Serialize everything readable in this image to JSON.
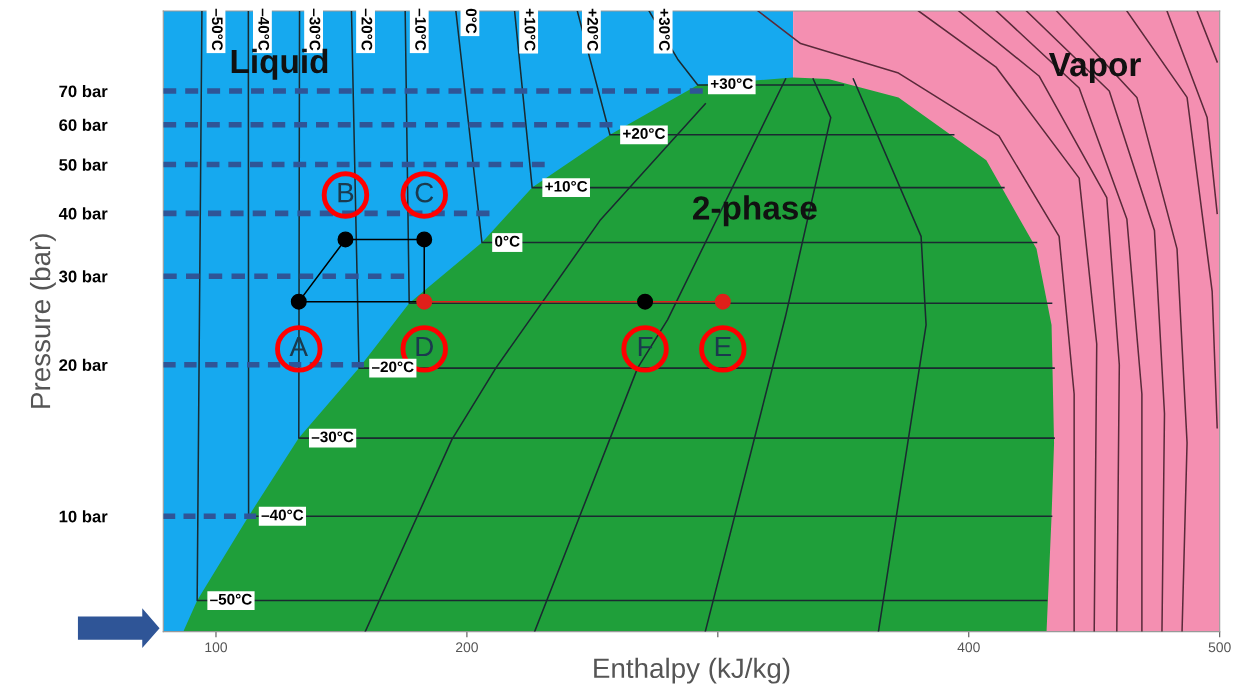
{
  "chart_data": {
    "type": "line",
    "xlabel": "Enthalpy (kJ/kg)",
    "ylabel": "Pressure (bar)",
    "log": "y",
    "xlim": [
      79,
      500
    ],
    "ylim": [
      5.9,
      101
    ],
    "xticks": [
      100,
      200,
      {
        "value": 300,
        "label": null
      },
      400,
      500
    ],
    "yticks": [
      {
        "value": 10,
        "label": "10 bar"
      },
      {
        "value": 20,
        "label": "20 bar"
      },
      {
        "value": 30,
        "label": "30 bar"
      },
      {
        "value": 40,
        "label": "40 bar"
      },
      {
        "value": 50,
        "label": "50 bar"
      },
      {
        "value": 60,
        "label": "60 bar"
      },
      {
        "value": 70,
        "label": "70 bar"
      }
    ],
    "grid": false,
    "bands": [
      {
        "axis": "x",
        "from": 79,
        "to": 330,
        "color": "#16a9ef"
      },
      {
        "axis": "x",
        "from": 330,
        "to": 500,
        "color": "#f48fb1"
      }
    ],
    "series": [
      {
        "type": "area",
        "color": "#1f9f3a",
        "x": [
          87,
          92.5,
          113,
          133,
          157,
          177,
          206,
          226,
          257,
          292,
          330,
          344,
          372,
          407,
          427,
          433,
          434,
          433,
          431
        ],
        "values": [
          5.9,
          6.8,
          10,
          14.3,
          19.7,
          26.5,
          35,
          45,
          57.3,
          72,
          74.5,
          74,
          68,
          51,
          34,
          24,
          14,
          10,
          5.9
        ]
      },
      {
        "color": "#1a2a30",
        "x": [
          159.5,
          194,
          211.5,
          253,
          295
        ],
        "values": [
          5.9,
          14.2,
          19.7,
          38.7,
          66
        ]
      },
      {
        "color": "#1a2a30",
        "x": [
          227,
          268,
          280,
          327
        ],
        "values": [
          5.9,
          19.7,
          24.6,
          74
        ]
      },
      {
        "color": "#1a2a30",
        "x": [
          295,
          327,
          345,
          338
        ],
        "values": [
          5.9,
          25,
          62,
          74
        ]
      },
      {
        "color": "#1a2a30",
        "x": [
          364,
          383,
          381,
          354
        ],
        "values": [
          5.9,
          24,
          36,
          74
        ]
      },
      {
        "color": "#5a2a3a",
        "x": [
          316,
          333,
          372,
          412,
          436,
          442,
          442
        ],
        "values": [
          101,
          87,
          76,
          57,
          36,
          17.5,
          5.9
        ]
      },
      {
        "color": "#5a2a3a",
        "x": [
          380,
          411,
          444,
          451,
          450
        ],
        "values": [
          101,
          78,
          47,
          22,
          5.9
        ]
      },
      {
        "color": "#5a2a3a",
        "x": [
          396,
          428,
          455,
          460,
          459
        ],
        "values": [
          101,
          75,
          43,
          20,
          5.9
        ]
      },
      {
        "color": "#5a2a3a",
        "x": [
          411,
          444,
          463,
          469,
          469
        ],
        "values": [
          101,
          71,
          39,
          17.5,
          5.9
        ]
      },
      {
        "color": "#5a2a3a",
        "x": [
          423,
          456,
          474,
          478,
          477
        ],
        "values": [
          101,
          70,
          37,
          16,
          5.9
        ]
      },
      {
        "color": "#5a2a3a",
        "x": [
          435,
          467,
          483,
          487,
          485
        ],
        "values": [
          101,
          68,
          34,
          14,
          5.9
        ]
      },
      {
        "color": "#5a2a3a",
        "x": [
          463,
          487,
          497,
          499
        ],
        "values": [
          101,
          68,
          28,
          15
        ]
      },
      {
        "color": "#5a2a3a",
        "x": [
          479,
          495,
          499
        ],
        "values": [
          101,
          62,
          40
        ]
      },
      {
        "color": "#5a2a3a",
        "x": [
          491,
          499
        ],
        "values": [
          101,
          80
        ]
      },
      {
        "name": "–50°C",
        "color": "#1a2a30",
        "x": [
          94.4,
          92.5,
          431
        ],
        "values": [
          101,
          6.8,
          6.8
        ]
      },
      {
        "name": "–40°C",
        "color": "#1a2a30",
        "x": [
          112.9,
          113,
          433
        ],
        "values": [
          101,
          10,
          10
        ]
      },
      {
        "name": "–30°C",
        "color": "#1a2a30",
        "x": [
          133.3,
          133,
          434
        ],
        "values": [
          101,
          14.3,
          14.3
        ]
      },
      {
        "name": "–20°C",
        "color": "#1a2a30",
        "x": [
          154,
          157,
          434
        ],
        "values": [
          101,
          19.7,
          19.7
        ]
      },
      {
        "name": "–10°C",
        "color": "#1a2a30",
        "x": [
          175.4,
          177,
          433
        ],
        "values": [
          101,
          26.5,
          26.5
        ]
      },
      {
        "name": "0°C",
        "color": "#1a2a30",
        "x": [
          195.6,
          206,
          427
        ],
        "values": [
          101,
          35,
          35
        ]
      },
      {
        "name": "+10°C",
        "color": "#1a2a30",
        "x": [
          219,
          226,
          414
        ],
        "values": [
          101,
          45,
          45
        ]
      },
      {
        "name": "+20°C",
        "color": "#1a2a30",
        "x": [
          244,
          257,
          394
        ],
        "values": [
          101,
          57.3,
          57.3
        ]
      },
      {
        "name": "+30°C",
        "color": "#1a2a30",
        "x": [
          272.6,
          284,
          292,
          350
        ],
        "values": [
          101,
          81,
          72,
          72
        ]
      },
      {
        "color": "#2f5597",
        "line_style": "dashed",
        "x": [
          79,
          116,
          null,
          79,
          159,
          null,
          79,
          175,
          null,
          79,
          209,
          null,
          79,
          231,
          null,
          79,
          258,
          null,
          79,
          294
        ],
        "values": [
          10,
          10,
          null,
          20,
          20,
          null,
          30,
          30,
          null,
          40,
          40,
          null,
          50,
          50,
          null,
          60,
          60,
          null,
          70,
          70
        ]
      },
      {
        "color": "#000000",
        "x": [
          133,
          151.6,
          183,
          183
        ],
        "values": [
          26.7,
          35.5,
          35.5,
          26.7
        ]
      },
      {
        "color": "#000000",
        "x": [
          133,
          183
        ],
        "values": [
          26.7,
          26.7
        ]
      },
      {
        "color": "#e0201a",
        "x": [
          183,
          302
        ],
        "values": [
          26.7,
          26.7
        ]
      },
      {
        "type": "scatter",
        "color": "#000000",
        "marker": "circle",
        "x": [
          133,
          151.6,
          183,
          271
        ],
        "values": [
          26.7,
          35.5,
          35.5,
          26.7
        ],
        "value_labels": [
          "A",
          "B",
          "C",
          "F"
        ]
      },
      {
        "type": "scatter",
        "color": "#e0201a",
        "marker": "circle",
        "x": [
          183,
          302
        ],
        "values": [
          26.7,
          26.7
        ],
        "value_labels": [
          "D",
          "E"
        ]
      }
    ],
    "annotations": [
      "Liquid",
      "Vapor",
      "2-phase",
      {
        "text": "–50°C",
        "x": 92.5,
        "y": 6.8
      },
      {
        "text": "–40°C",
        "x": 113,
        "y": 10
      },
      {
        "text": "–30°C",
        "x": 133,
        "y": 14.3
      },
      {
        "text": "–20°C",
        "x": 157,
        "y": 19.7
      },
      {
        "text": "0°C",
        "x": 206,
        "y": 35
      },
      {
        "text": "+10°C",
        "x": 226,
        "y": 45
      },
      {
        "text": "+20°C",
        "x": 257,
        "y": 57.3
      },
      {
        "text": "+30°C",
        "x": 292,
        "y": 72
      }
    ]
  }
}
